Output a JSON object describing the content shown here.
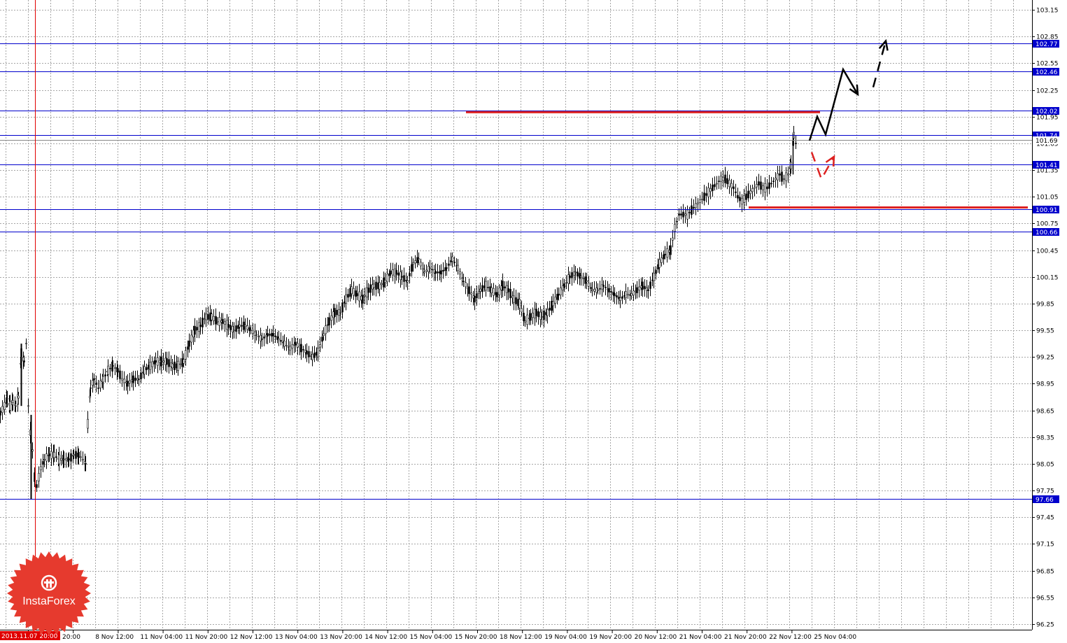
{
  "chart_data": {
    "type": "candlestick",
    "ylim": [
      96.25,
      103.15
    ],
    "grid": true,
    "y_ticks": [
      "103.15",
      "102.85",
      "102.55",
      "102.25",
      "101.95",
      "101.65",
      "101.35",
      "101.05",
      "100.75",
      "100.45",
      "100.15",
      "99.85",
      "99.55",
      "99.25",
      "98.95",
      "98.65",
      "98.35",
      "98.05",
      "97.75",
      "97.45",
      "97.15",
      "96.85",
      "96.55",
      "96.25"
    ],
    "x_ticks": [
      "7 Nov 20:00",
      "8 Nov 12:00",
      "11 Nov 04:00",
      "11 Nov 20:00",
      "12 Nov 12:00",
      "13 Nov 04:00",
      "13 Nov 20:00",
      "14 Nov 12:00",
      "15 Nov 04:00",
      "15 Nov 20:00",
      "18 Nov 12:00",
      "19 Nov 04:00",
      "19 Nov 20:00",
      "20 Nov 12:00",
      "21 Nov 04:00",
      "21 Nov 20:00",
      "22 Nov 12:00",
      "25 Nov 04:00"
    ],
    "marker_label": "2013.11.07 20:00",
    "current_price": "101.69",
    "horizontal_levels": [
      "102.77",
      "102.46",
      "102.02",
      "101.74",
      "101.41",
      "100.91",
      "100.66",
      "97.66"
    ],
    "price_path": [
      [
        0,
        98.62
      ],
      [
        6,
        98.7
      ],
      [
        10,
        98.78
      ],
      [
        14,
        98.7
      ],
      [
        18,
        98.75
      ],
      [
        22,
        98.7
      ],
      [
        26,
        98.8
      ],
      [
        30,
        99.3
      ],
      [
        34,
        99.2
      ],
      [
        37,
        99.4
      ],
      [
        40,
        98.7
      ],
      [
        43,
        98.4
      ],
      [
        46,
        98.2
      ],
      [
        49,
        97.9
      ],
      [
        52,
        97.8
      ],
      [
        55,
        97.9
      ],
      [
        58,
        98.0
      ],
      [
        63,
        98.1
      ],
      [
        70,
        98.15
      ],
      [
        77,
        98.15
      ],
      [
        84,
        98.1
      ],
      [
        91,
        98.1
      ],
      [
        98,
        98.1
      ],
      [
        105,
        98.15
      ],
      [
        112,
        98.15
      ],
      [
        118,
        98.1
      ],
      [
        122,
        98.05
      ],
      [
        125,
        98.5
      ],
      [
        129,
        98.9
      ],
      [
        134,
        99.0
      ],
      [
        140,
        98.9
      ],
      [
        147,
        99.0
      ],
      [
        154,
        99.1
      ],
      [
        161,
        99.15
      ],
      [
        168,
        99.1
      ],
      [
        174,
        99.0
      ],
      [
        182,
        98.95
      ],
      [
        190,
        99.0
      ],
      [
        198,
        99.0
      ],
      [
        206,
        99.1
      ],
      [
        214,
        99.15
      ],
      [
        222,
        99.2
      ],
      [
        230,
        99.2
      ],
      [
        238,
        99.2
      ],
      [
        246,
        99.15
      ],
      [
        254,
        99.15
      ],
      [
        262,
        99.2
      ],
      [
        270,
        99.4
      ],
      [
        278,
        99.55
      ],
      [
        286,
        99.6
      ],
      [
        294,
        99.7
      ],
      [
        302,
        99.7
      ],
      [
        310,
        99.65
      ],
      [
        318,
        99.65
      ],
      [
        326,
        99.6
      ],
      [
        334,
        99.55
      ],
      [
        342,
        99.6
      ],
      [
        350,
        99.6
      ],
      [
        358,
        99.55
      ],
      [
        366,
        99.5
      ],
      [
        374,
        99.45
      ],
      [
        382,
        99.5
      ],
      [
        390,
        99.5
      ],
      [
        398,
        99.45
      ],
      [
        406,
        99.4
      ],
      [
        414,
        99.35
      ],
      [
        422,
        99.4
      ],
      [
        430,
        99.35
      ],
      [
        438,
        99.3
      ],
      [
        446,
        99.25
      ],
      [
        454,
        99.3
      ],
      [
        462,
        99.5
      ],
      [
        470,
        99.65
      ],
      [
        478,
        99.75
      ],
      [
        486,
        99.75
      ],
      [
        494,
        99.9
      ],
      [
        502,
        100.0
      ],
      [
        510,
        99.95
      ],
      [
        518,
        99.9
      ],
      [
        526,
        100.0
      ],
      [
        534,
        100.05
      ],
      [
        542,
        100.05
      ],
      [
        550,
        100.1
      ],
      [
        558,
        100.2
      ],
      [
        566,
        100.2
      ],
      [
        574,
        100.15
      ],
      [
        582,
        100.1
      ],
      [
        590,
        100.3
      ],
      [
        598,
        100.35
      ],
      [
        606,
        100.2
      ],
      [
        614,
        100.25
      ],
      [
        622,
        100.2
      ],
      [
        630,
        100.2
      ],
      [
        638,
        100.25
      ],
      [
        646,
        100.35
      ],
      [
        654,
        100.25
      ],
      [
        662,
        100.1
      ],
      [
        670,
        100.0
      ],
      [
        678,
        99.9
      ],
      [
        686,
        100.0
      ],
      [
        694,
        100.05
      ],
      [
        702,
        100.0
      ],
      [
        710,
        99.95
      ],
      [
        718,
        100.05
      ],
      [
        726,
        100.0
      ],
      [
        734,
        99.9
      ],
      [
        742,
        99.85
      ],
      [
        750,
        99.65
      ],
      [
        758,
        99.7
      ],
      [
        766,
        99.75
      ],
      [
        774,
        99.7
      ],
      [
        782,
        99.75
      ],
      [
        790,
        99.85
      ],
      [
        798,
        99.95
      ],
      [
        806,
        100.05
      ],
      [
        814,
        100.15
      ],
      [
        822,
        100.2
      ],
      [
        830,
        100.15
      ],
      [
        838,
        100.1
      ],
      [
        846,
        100.0
      ],
      [
        854,
        100.0
      ],
      [
        862,
        100.05
      ],
      [
        870,
        100.0
      ],
      [
        878,
        99.95
      ],
      [
        886,
        99.9
      ],
      [
        894,
        99.95
      ],
      [
        902,
        99.95
      ],
      [
        910,
        100.0
      ],
      [
        918,
        100.05
      ],
      [
        926,
        100.0
      ],
      [
        934,
        100.15
      ],
      [
        942,
        100.3
      ],
      [
        950,
        100.4
      ],
      [
        958,
        100.45
      ],
      [
        964,
        100.7
      ],
      [
        970,
        100.85
      ],
      [
        976,
        100.85
      ],
      [
        982,
        100.85
      ],
      [
        988,
        100.9
      ],
      [
        994,
        100.95
      ],
      [
        1000,
        101.0
      ],
      [
        1006,
        101.05
      ],
      [
        1012,
        101.1
      ],
      [
        1018,
        101.15
      ],
      [
        1024,
        101.2
      ],
      [
        1030,
        101.25
      ],
      [
        1036,
        101.25
      ],
      [
        1042,
        101.2
      ],
      [
        1048,
        101.15
      ],
      [
        1054,
        101.05
      ],
      [
        1060,
        101.0
      ],
      [
        1066,
        101.05
      ],
      [
        1072,
        101.1
      ],
      [
        1078,
        101.15
      ],
      [
        1084,
        101.2
      ],
      [
        1090,
        101.15
      ],
      [
        1096,
        101.15
      ],
      [
        1102,
        101.2
      ],
      [
        1108,
        101.25
      ],
      [
        1114,
        101.3
      ],
      [
        1120,
        101.25
      ],
      [
        1126,
        101.3
      ],
      [
        1130,
        101.4
      ],
      [
        1134,
        101.74
      ],
      [
        1137,
        101.65
      ],
      [
        1140,
        101.7
      ]
    ],
    "red_lines": [
      [
        666,
        1172,
        102.0
      ],
      [
        1070,
        1469,
        100.93
      ]
    ],
    "black_arrows": [
      [
        [
          1157,
          101.68
        ],
        [
          1168,
          101.95
        ],
        [
          1180,
          101.75
        ],
        [
          1205,
          102.48
        ],
        [
          1226,
          102.2
        ]
      ],
      [
        [
          1248,
          102.28
        ],
        [
          1266,
          102.8
        ]
      ]
    ],
    "red_arrows": [
      [
        [
          1160,
          101.55
        ],
        [
          1174,
          101.25
        ],
        [
          1192,
          101.5
        ]
      ]
    ],
    "colors": {
      "grid": "#a6a6a6",
      "level_line": "#0000cc",
      "level_label_bg": "#0000cc",
      "marker": "#e00000",
      "red_line": "#dd2222",
      "candles": "#000000",
      "axis": "#000000"
    }
  },
  "watermark": {
    "text": "InstaForex",
    "color": "#e63a2e"
  }
}
